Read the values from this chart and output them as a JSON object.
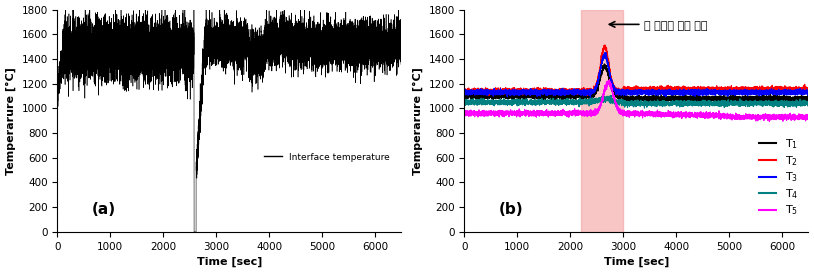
{
  "xlim": [
    0,
    6500
  ],
  "ylim": [
    0,
    1800
  ],
  "yticks": [
    0,
    200,
    400,
    600,
    800,
    1000,
    1200,
    1400,
    1600,
    1800
  ],
  "xticks": [
    0,
    1000,
    2000,
    3000,
    4000,
    5000,
    6000
  ],
  "ylabel": "Temperarure [°C]",
  "xlabel": "Time [sec]",
  "label_a": "(a)",
  "label_b": "(b)",
  "highlight_xstart": 2200,
  "highlight_xend": 3000,
  "highlight_color": "#f5a0a0",
  "line_colors": [
    "black",
    "red",
    "blue",
    "#008080",
    "magenta"
  ],
  "interface_legend": "Interface temperature",
  "annotation_korean": "후 연소기 운전 구간",
  "legend_labels": [
    "T$_1$",
    "T$_2$",
    "T$_3$",
    "T$_4$",
    "T$_5$"
  ]
}
